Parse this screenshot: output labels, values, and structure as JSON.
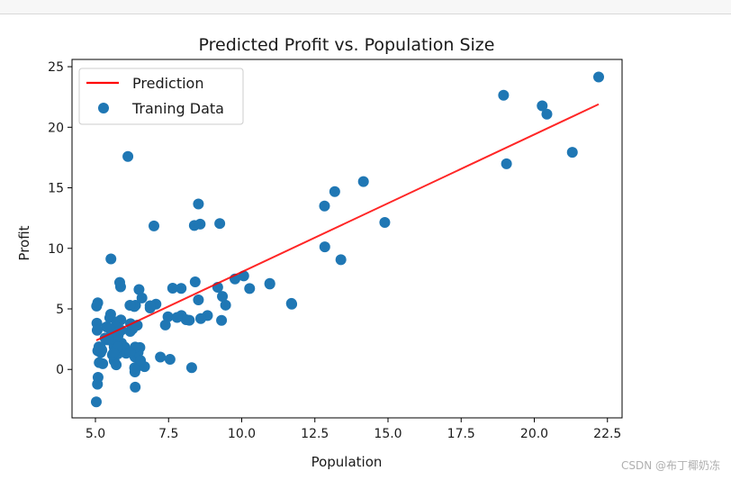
{
  "chart_data": {
    "type": "scatter",
    "title": "Predicted Profit vs. Population Size",
    "xlabel": "Population",
    "ylabel": "Profit",
    "xlim": [
      4.2,
      23.0
    ],
    "ylim": [
      -4.0,
      25.6
    ],
    "xticks": [
      "5.0",
      "7.5",
      "10.0",
      "12.5",
      "15.0",
      "17.5",
      "20.0",
      "22.5"
    ],
    "yticks": [
      "0",
      "5",
      "10",
      "15",
      "20",
      "25"
    ],
    "legend_position": "top-left",
    "grid": false,
    "series": [
      {
        "name": "Prediction",
        "kind": "line",
        "color": "#ff0000",
        "x": [
          5.03,
          22.2
        ],
        "y": [
          2.4,
          21.9
        ]
      },
      {
        "name": "Traning Data",
        "kind": "scatter",
        "color": "#1f77b4",
        "x": [
          6.11,
          5.53,
          8.52,
          7.0,
          5.86,
          8.38,
          7.48,
          8.58,
          6.49,
          5.05,
          5.71,
          14.16,
          5.73,
          8.41,
          5.64,
          5.38,
          6.37,
          5.13,
          6.43,
          7.07,
          6.19,
          20.27,
          5.49,
          6.33,
          5.56,
          18.95,
          12.83,
          10.96,
          13.18,
          22.2,
          5.25,
          6.59,
          9.25,
          5.89,
          8.21,
          7.93,
          8.1,
          5.61,
          12.84,
          6.35,
          5.41,
          6.87,
          5.64,
          9.77,
          6.52,
          8.52,
          9.18,
          6.0,
          5.52,
          5.06,
          5.71,
          7.64,
          5.87,
          5.17,
          10.27,
          5.73,
          5.18,
          10.96,
          6.87,
          9.31,
          9.45,
          8.83,
          5.33,
          6.46,
          6.36,
          5.77,
          6.68,
          6.27,
          5.65,
          5.08,
          5.04,
          11.7,
          5.71,
          5.08,
          5.09,
          6.47,
          5.22,
          7.39,
          5.66,
          9.34,
          5.88,
          5.07,
          5.58,
          5.78,
          6.2,
          5.44,
          6.18,
          6.05,
          5.76,
          5.83,
          8.29,
          7.94,
          13.39,
          5.03,
          21.3,
          7.22,
          6.35,
          7.79,
          6.36,
          7.55,
          19.05,
          20.43,
          11.71,
          14.89,
          6.34,
          8.6,
          10.07,
          5.12,
          5.62,
          6.54,
          5.49,
          6.18
        ],
        "y": [
          17.59,
          9.13,
          13.66,
          11.85,
          6.82,
          11.89,
          4.35,
          12.0,
          6.6,
          3.82,
          3.25,
          15.51,
          3.16,
          7.23,
          0.72,
          3.51,
          5.3,
          0.56,
          3.65,
          5.39,
          3.14,
          21.77,
          4.26,
          5.19,
          3.08,
          22.64,
          13.5,
          7.05,
          14.69,
          24.15,
          0.47,
          5.9,
          12.05,
          2.18,
          4.06,
          6.69,
          4.11,
          2.2,
          10.12,
          1.03,
          2.44,
          5.07,
          1.86,
          7.47,
          1.81,
          5.74,
          6.78,
          1.85,
          4.55,
          3.23,
          0.38,
          6.71,
          4.09,
          1.85,
          6.68,
          3.92,
          1.39,
          7.1,
          5.26,
          4.05,
          5.31,
          4.45,
          2.59,
          1.4,
          -1.46,
          1.29,
          0.23,
          3.34,
          2.01,
          5.5,
          5.23,
          5.45,
          3.5,
          1.54,
          -0.65,
          0.29,
          1.6,
          3.67,
          2.41,
          6.03,
          3.23,
          -1.22,
          1.21,
          2.83,
          3.78,
          2.53,
          5.3,
          1.34,
          1.85,
          7.18,
          0.15,
          4.45,
          9.06,
          -2.68,
          17.93,
          1.02,
          -0.21,
          4.29,
          1.85,
          0.83,
          16.98,
          21.08,
          5.39,
          12.14,
          0.14,
          4.2,
          7.72,
          1.87,
          1.36,
          0.74,
          3.38,
          1.4
        ]
      }
    ]
  },
  "watermark": "CSDN @布丁椰奶冻"
}
